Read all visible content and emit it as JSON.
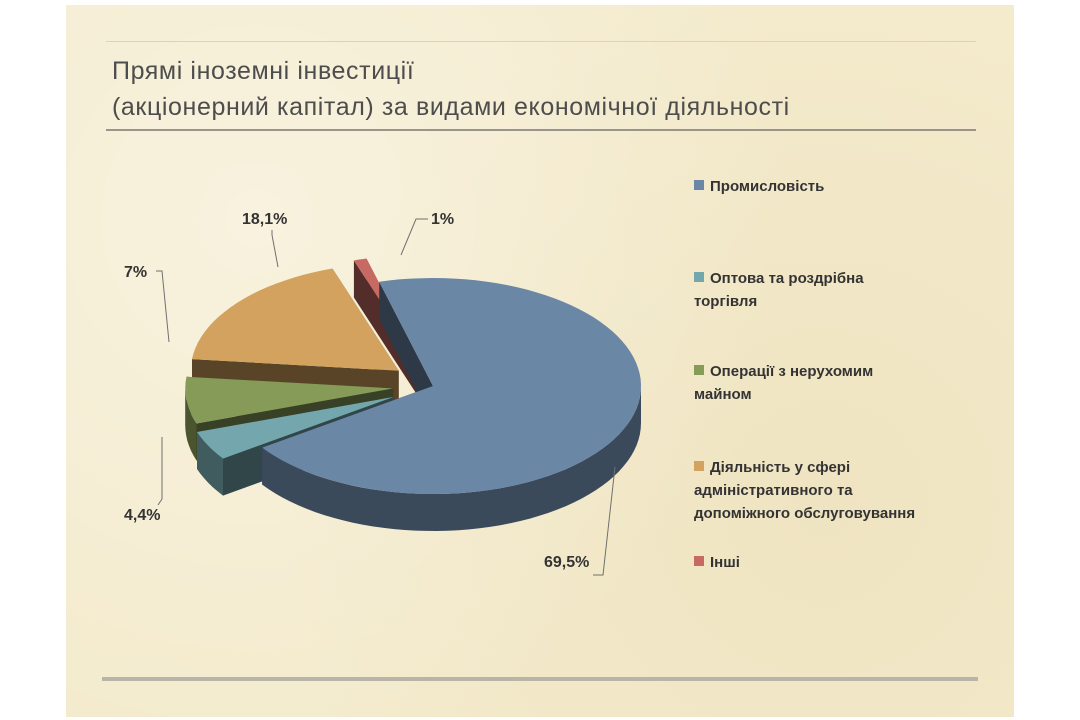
{
  "title": {
    "line1": "Прямі іноземні інвестиції",
    "line2": "(акціонерний капітал) за видами економічної діяльності"
  },
  "chart_data": {
    "type": "pie",
    "title": "Прямі іноземні інвестиції (акціонерний капітал) за видами економічної діяльності",
    "legend_position": "right",
    "slices": [
      {
        "label": "Промисловість",
        "value": 69.5,
        "display": "69,5%",
        "color": "#6b87a6"
      },
      {
        "label": "Оптова та роздрібна торгівля",
        "value": 4.4,
        "display": "4,4%",
        "color": "#74a7ad"
      },
      {
        "label": "Операції з нерухомим майном",
        "value": 7,
        "display": "7%",
        "color": "#869b58"
      },
      {
        "label": "Діяльність у сфері адміністративного та допоміжного обслуговування",
        "value": 18.1,
        "display": "18,1%",
        "color": "#d3a25f"
      },
      {
        "label": "Інші",
        "value": 1,
        "display": "1%",
        "color": "#c66a63"
      }
    ]
  }
}
